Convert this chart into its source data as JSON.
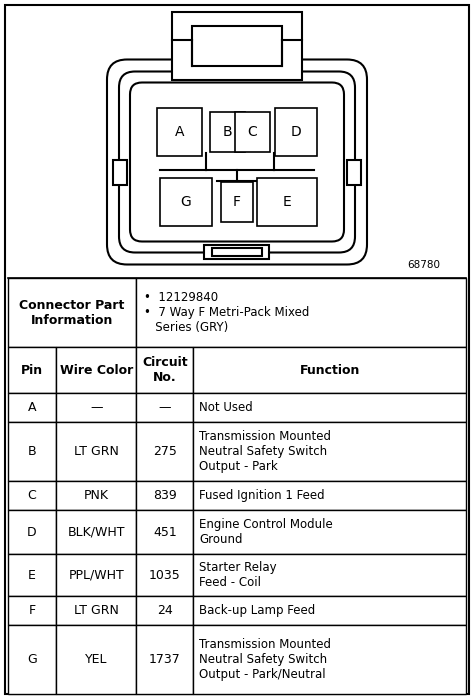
{
  "fig_width": 4.74,
  "fig_height": 6.99,
  "dpi": 100,
  "bg_color": "#ffffff",
  "diagram_number": "68780",
  "connector_part_number": "12129840",
  "connector_type": "7 Way F Metri-Pack Mixed\n   Series (GRY)",
  "header_row": [
    "Pin",
    "Wire Color",
    "Circuit\nNo.",
    "Function"
  ],
  "rows": [
    [
      "A",
      "—",
      "—",
      "Not Used"
    ],
    [
      "B",
      "LT GRN",
      "275",
      "Transmission Mounted\nNeutral Safety Switch\nOutput - Park"
    ],
    [
      "C",
      "PNK",
      "839",
      "Fused Ignition 1 Feed"
    ],
    [
      "D",
      "BLK/WHT",
      "451",
      "Engine Control Module\nGround"
    ],
    [
      "E",
      "PPL/WHT",
      "1035",
      "Starter Relay\nFeed - Coil"
    ],
    [
      "F",
      "LT GRN",
      "24",
      "Back-up Lamp Feed"
    ],
    [
      "G",
      "YEL",
      "1737",
      "Transmission Mounted\nNeutral Safety Switch\nOutput - Park/Neutral"
    ]
  ]
}
